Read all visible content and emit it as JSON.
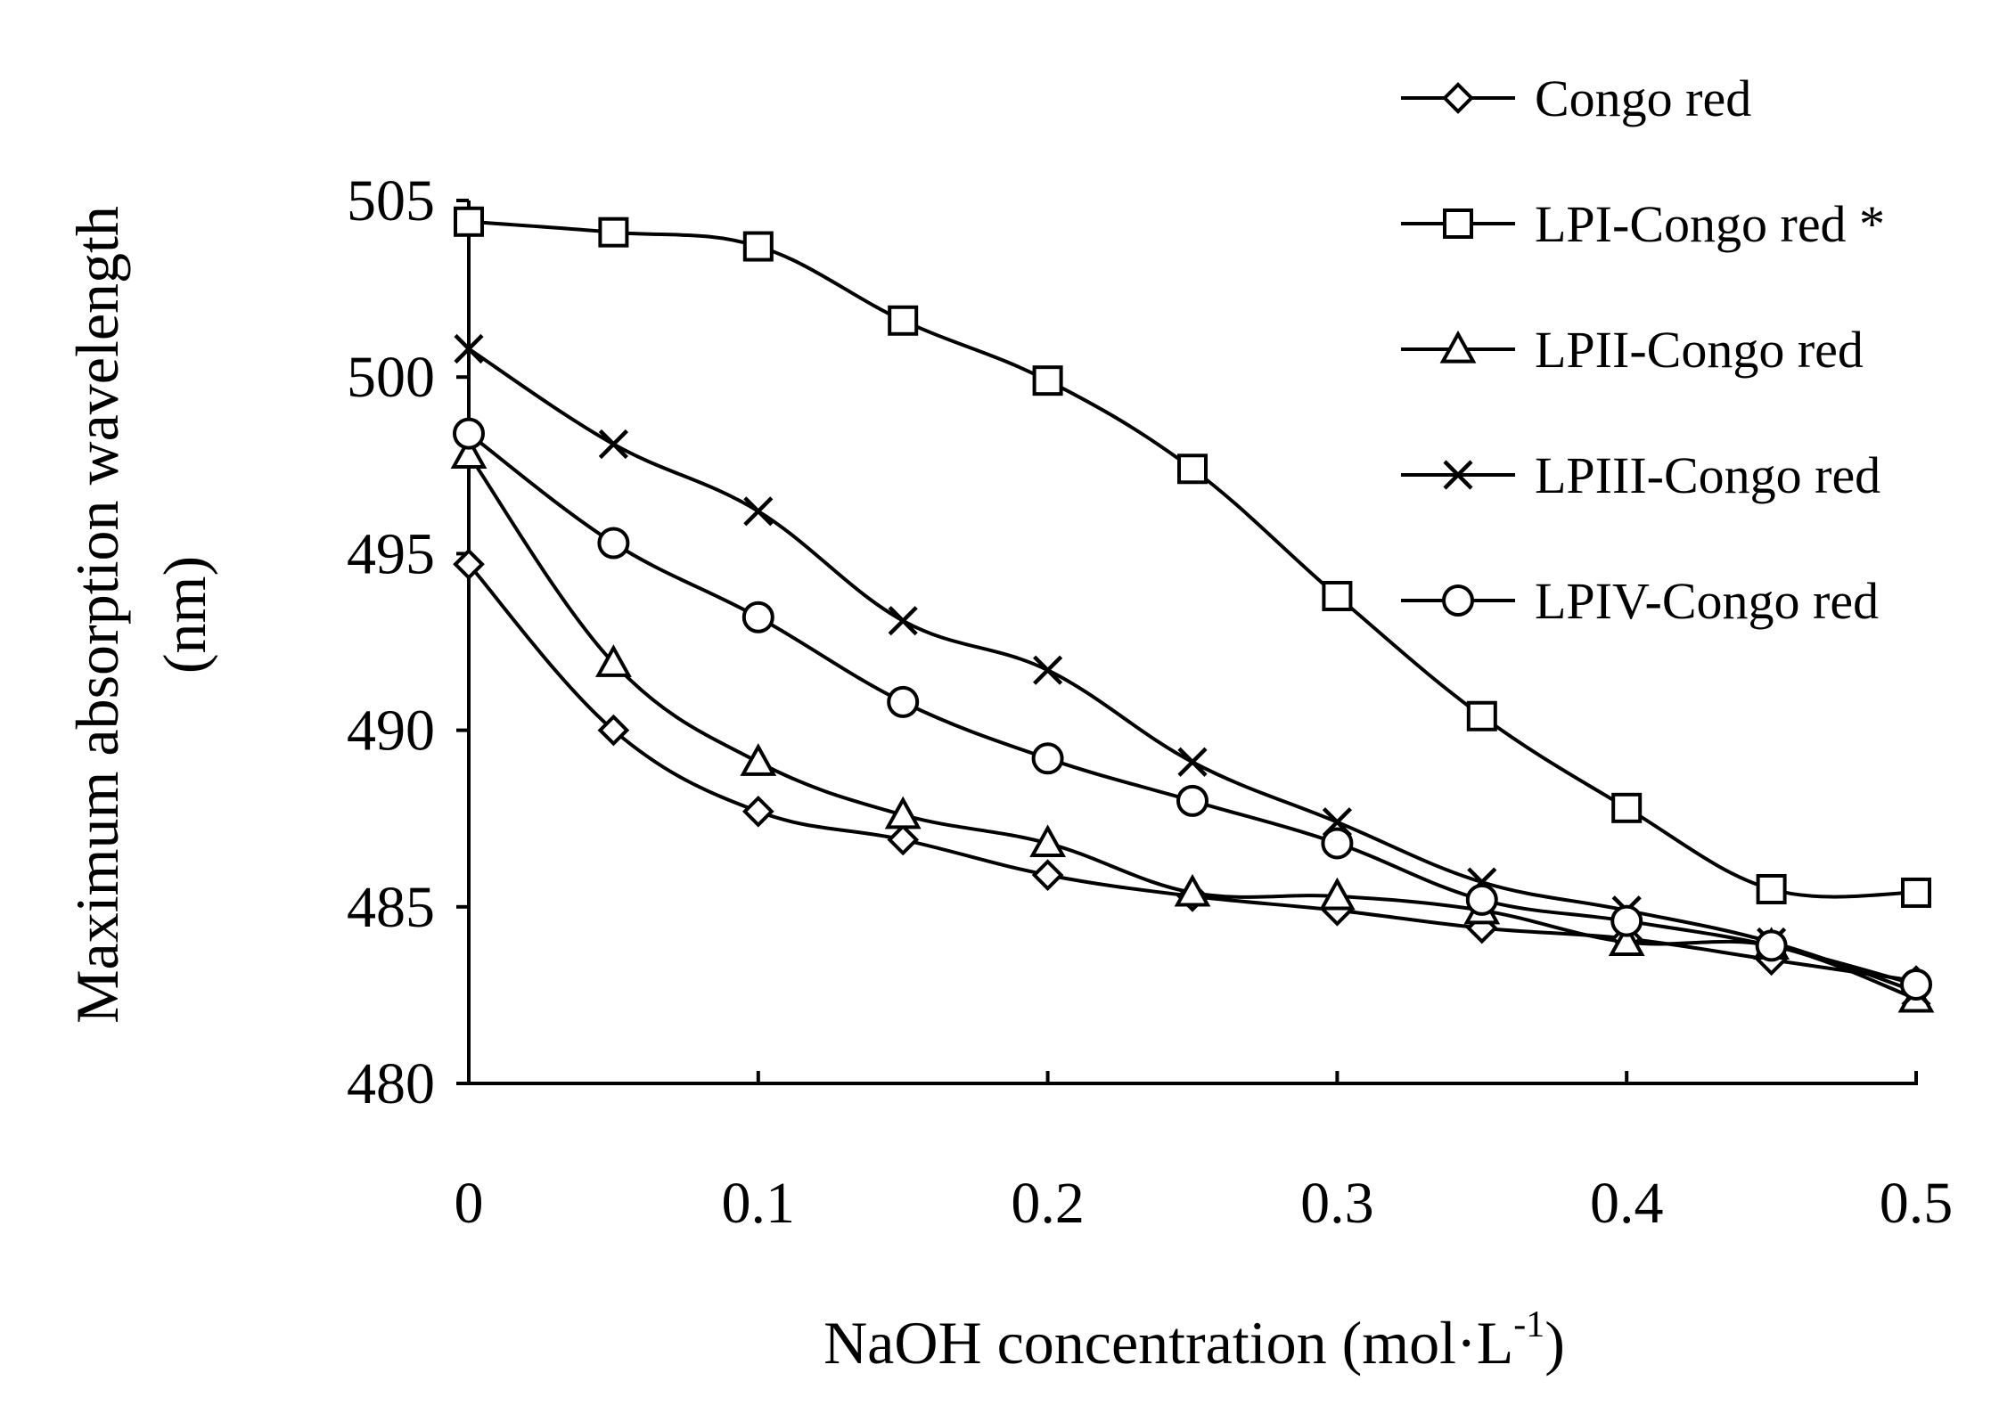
{
  "chart_data": {
    "type": "line",
    "title": "",
    "xlabel": "NaOH concentration (mol·L",
    "xlabel_sup": "-1",
    "xlabel_close": ")",
    "ylabel_line1": "Maximum absorption wavelength",
    "ylabel_line2": "(nm)",
    "xlim": [
      0,
      0.5
    ],
    "ylim": [
      480,
      505
    ],
    "x_ticks": [
      0,
      0.1,
      0.2,
      0.3,
      0.4,
      0.5
    ],
    "x_tick_labels": [
      "0",
      "0.1",
      "0.2",
      "0.3",
      "0.4",
      "0.5"
    ],
    "y_ticks": [
      480,
      485,
      490,
      495,
      500,
      505
    ],
    "y_tick_labels": [
      "480",
      "485",
      "490",
      "495",
      "500",
      "505"
    ],
    "x": [
      0,
      0.05,
      0.1,
      0.15,
      0.2,
      0.25,
      0.3,
      0.35,
      0.4,
      0.45,
      0.5
    ],
    "grid": false,
    "legend_position": "top-right",
    "series": [
      {
        "name": "Congo red",
        "marker": "diamond",
        "values": [
          494.7,
          490.0,
          487.7,
          486.9,
          485.9,
          485.3,
          484.9,
          484.4,
          484.1,
          483.5,
          482.9
        ]
      },
      {
        "name": "LPI-Congo red *",
        "marker": "square",
        "values": [
          504.4,
          504.1,
          503.7,
          501.6,
          499.9,
          497.4,
          493.8,
          490.4,
          487.8,
          485.5,
          485.4
        ]
      },
      {
        "name": "LPII-Congo red",
        "marker": "triangle",
        "values": [
          497.8,
          491.9,
          489.1,
          487.6,
          486.8,
          485.4,
          485.3,
          484.9,
          484.0,
          483.9,
          482.4
        ]
      },
      {
        "name": "LPIII-Congo red",
        "marker": "x",
        "values": [
          500.8,
          498.1,
          496.2,
          493.1,
          491.7,
          489.1,
          487.4,
          485.7,
          484.9,
          484.0,
          482.6
        ]
      },
      {
        "name": "LPIV-Congo red",
        "marker": "circle",
        "values": [
          498.4,
          495.3,
          493.2,
          490.8,
          489.2,
          488.0,
          486.8,
          485.2,
          484.6,
          483.9,
          482.8
        ]
      }
    ]
  }
}
